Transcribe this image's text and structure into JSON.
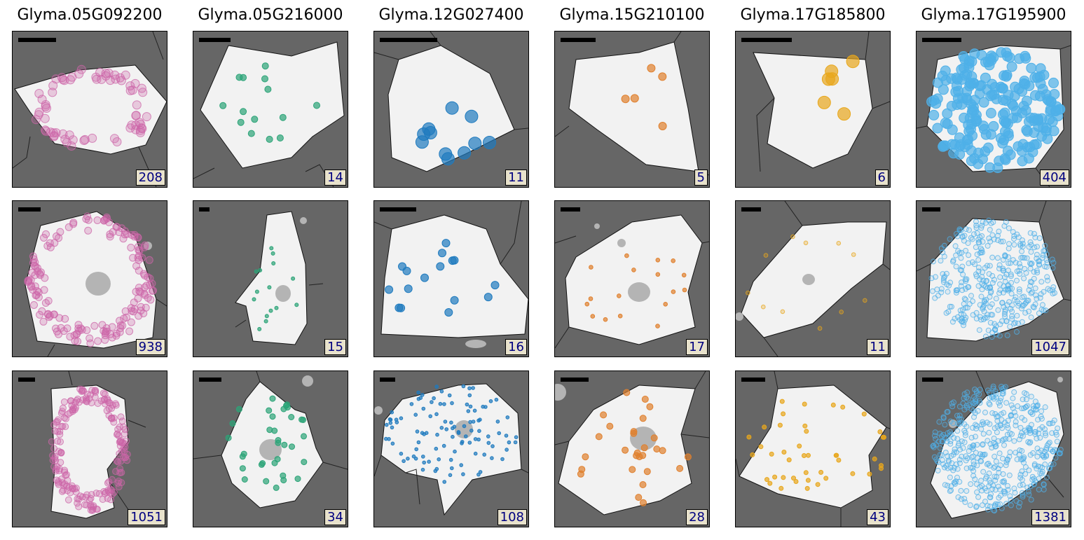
{
  "colors": {
    "background": "#666666",
    "cell": "#f2f2f2",
    "nucleus": "#b4b4b4",
    "badge_bg": "#e8e2cc",
    "badge_text": "#000080"
  },
  "columns": [
    {
      "gene": "Glyma.05G092200",
      "color": "#cc66a8",
      "counts": [
        "208",
        "938",
        "1051"
      ]
    },
    {
      "gene": "Glyma.05G216000",
      "color": "#2ca478",
      "counts": [
        "14",
        "15",
        "34"
      ]
    },
    {
      "gene": "Glyma.12G027400",
      "color": "#1f7bbf",
      "counts": [
        "11",
        "16",
        "108"
      ]
    },
    {
      "gene": "Glyma.15G210100",
      "color": "#e0802e",
      "counts": [
        "5",
        "17",
        "28"
      ]
    },
    {
      "gene": "Glyma.17G185800",
      "color": "#e8a71c",
      "counts": [
        "6",
        "11",
        "43"
      ]
    },
    {
      "gene": "Glyma.17G195900",
      "color": "#4fb0e8",
      "counts": [
        "404",
        "1047",
        "1381"
      ]
    }
  ]
}
